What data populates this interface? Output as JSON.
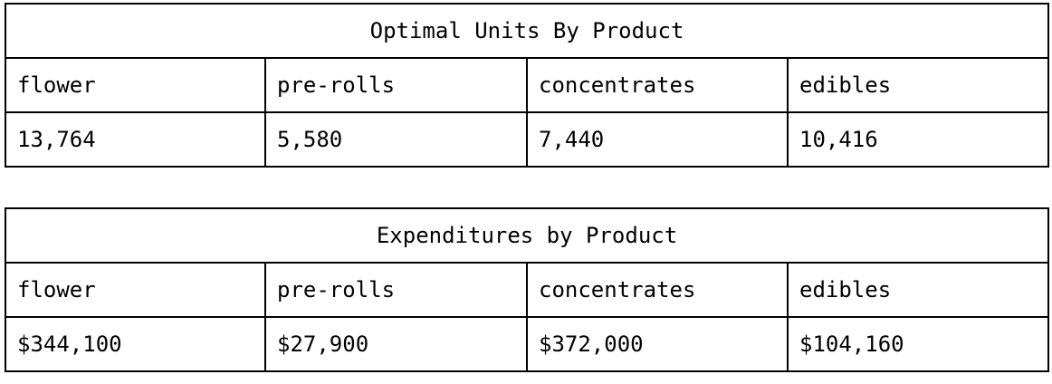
{
  "tables": [
    {
      "title": "Optimal Units By Product",
      "headers": [
        "flower",
        "pre-rolls",
        "concentrates",
        "edibles"
      ],
      "values": [
        "13,764",
        "5,580",
        "7,440",
        "10,416"
      ]
    },
    {
      "title": "Expenditures by Product",
      "headers": [
        "flower",
        "pre-rolls",
        "concentrates",
        "edibles"
      ],
      "values": [
        "$344,100",
        "$27,900",
        "$372,000",
        "$104,160"
      ]
    }
  ]
}
